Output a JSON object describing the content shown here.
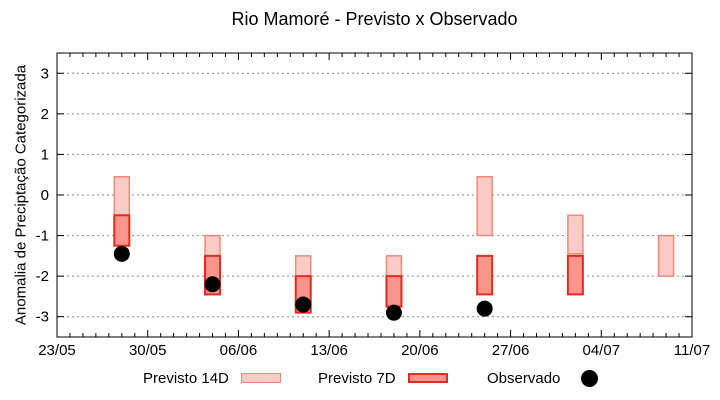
{
  "chart_data": {
    "type": "bar",
    "subtype": "range-bars-with-scatter",
    "title": "Rio Mamoré - Previsto x Observado",
    "ylabel": "Anomalia de Preciptação Categorizada",
    "xlabel": "",
    "ylim": [
      -3.5,
      3.5
    ],
    "y_ticks": [
      3,
      2,
      1,
      0,
      -1,
      -2,
      -3
    ],
    "x_range_days": [
      0,
      49
    ],
    "x_ticks": [
      {
        "day": 0,
        "label": "23/05"
      },
      {
        "day": 7,
        "label": "30/05"
      },
      {
        "day": 14,
        "label": "06/06"
      },
      {
        "day": 21,
        "label": "13/06"
      },
      {
        "day": 28,
        "label": "20/06"
      },
      {
        "day": 35,
        "label": "27/06"
      },
      {
        "day": 42,
        "label": "04/07"
      },
      {
        "day": 49,
        "label": "11/07"
      }
    ],
    "grid": "horizontal-dotted",
    "legend_position": "bottom",
    "series": [
      {
        "name": "Previsto 14D",
        "type": "range-bar",
        "fill": "#fbcbc5",
        "border": "#f0897a",
        "points": [
          {
            "day": 5,
            "date": "28/05",
            "high": 0.45,
            "low": -1.25
          },
          {
            "day": 12,
            "date": "04/06",
            "high": -1.0,
            "low": -2.45
          },
          {
            "day": 19,
            "date": "11/06",
            "high": -1.5,
            "low": -2.9
          },
          {
            "day": 26,
            "date": "18/06",
            "high": -1.5,
            "low": -2.75
          },
          {
            "day": 33,
            "date": "25/06",
            "high": 0.45,
            "low": -1.0
          },
          {
            "day": 40,
            "date": "02/07",
            "high": -0.5,
            "low": -1.45
          },
          {
            "day": 47,
            "date": "09/07",
            "high": -1.0,
            "low": -2.0
          }
        ]
      },
      {
        "name": "Previsto 7D",
        "type": "range-bar",
        "fill": "#fa958d",
        "border": "#e62a1e",
        "points": [
          {
            "day": 5,
            "date": "28/05",
            "high": -0.5,
            "low": -1.25
          },
          {
            "day": 12,
            "date": "04/06",
            "high": -1.5,
            "low": -2.45
          },
          {
            "day": 19,
            "date": "11/06",
            "high": -2.0,
            "low": -2.9
          },
          {
            "day": 26,
            "date": "18/06",
            "high": -2.0,
            "low": -2.75
          },
          {
            "day": 33,
            "date": "25/06",
            "high": -1.5,
            "low": -2.45
          },
          {
            "day": 40,
            "date": "02/07",
            "high": -1.5,
            "low": -2.45
          }
        ]
      },
      {
        "name": "Observado",
        "type": "scatter",
        "color": "#000000",
        "points": [
          {
            "day": 5,
            "date": "28/05",
            "value": -1.45
          },
          {
            "day": 12,
            "date": "04/06",
            "value": -2.2
          },
          {
            "day": 19,
            "date": "11/06",
            "value": -2.7
          },
          {
            "day": 26,
            "date": "18/06",
            "value": -2.9
          },
          {
            "day": 33,
            "date": "25/06",
            "value": -2.8
          }
        ]
      }
    ]
  }
}
